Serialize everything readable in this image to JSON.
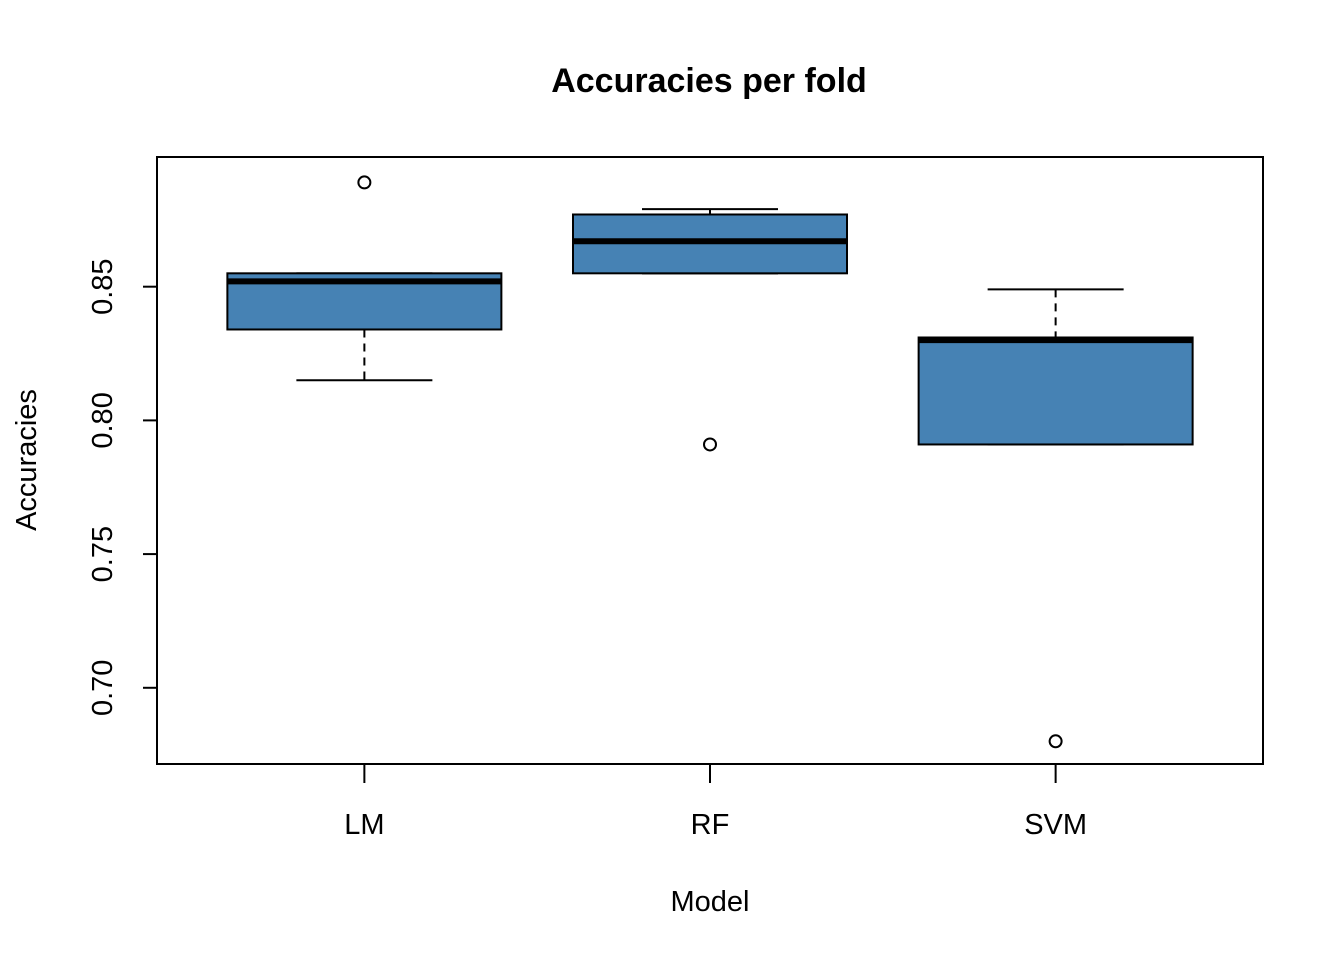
{
  "chart_data": {
    "type": "boxplot",
    "title": "Accuracies per fold",
    "xlabel": "Model",
    "ylabel": "Accuracies",
    "categories": [
      "LM",
      "RF",
      "SVM"
    ],
    "ylim": [
      0.6715,
      0.8985
    ],
    "yticks": [
      0.7,
      0.75,
      0.8,
      0.85
    ],
    "ytick_labels": [
      "0.70",
      "0.75",
      "0.80",
      "0.85"
    ],
    "box_color": "#4682B4",
    "boxes": [
      {
        "name": "LM",
        "whisker_low": 0.815,
        "q1": 0.834,
        "median": 0.852,
        "q3": 0.855,
        "whisker_high": 0.855,
        "outliers": [
          0.889
        ]
      },
      {
        "name": "RF",
        "whisker_low": 0.855,
        "q1": 0.855,
        "median": 0.867,
        "q3": 0.877,
        "whisker_high": 0.879,
        "outliers": [
          0.791
        ]
      },
      {
        "name": "SVM",
        "whisker_low": 0.791,
        "q1": 0.791,
        "median": 0.83,
        "q3": 0.831,
        "whisker_high": 0.849,
        "outliers": [
          0.68
        ]
      }
    ],
    "grid": false,
    "legend": "none"
  }
}
